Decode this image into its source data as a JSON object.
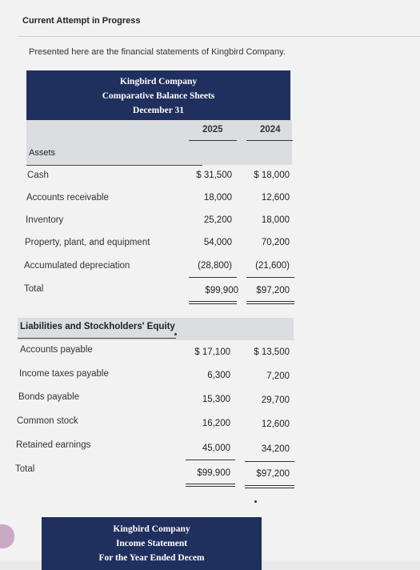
{
  "header": {
    "title": "Current Attempt in Progress"
  },
  "intro": "Presented here are the financial statements of Kingbird Company.",
  "balance_sheet": {
    "company": "Kingbird Company",
    "statement": "Comparative Balance Sheets",
    "date": "December 31",
    "years": [
      "2025",
      "2024"
    ],
    "assets_label": "Assets",
    "assets": [
      {
        "label": "Cash",
        "v2025": "$ 31,500",
        "v2024": "$ 18,000"
      },
      {
        "label": "Accounts receivable",
        "v2025": "18,000",
        "v2024": "12,600"
      },
      {
        "label": "Inventory",
        "v2025": "25,200",
        "v2024": "18,000"
      },
      {
        "label": "Property, plant, and equipment",
        "v2025": "54,000",
        "v2024": "70,200"
      },
      {
        "label": "Accumulated depreciation",
        "v2025": "(28,800)",
        "v2024": "(21,600)"
      },
      {
        "label": "Total",
        "v2025": "$99,900",
        "v2024": "$97,200"
      }
    ],
    "liab_label": "Liabilities and Stockholders' Equity",
    "liabilities": [
      {
        "label": "Accounts payable",
        "v2025": "$ 17,100",
        "v2024": "$ 13,500"
      },
      {
        "label": "Income taxes payable",
        "v2025": "6,300",
        "v2024": "7,200"
      },
      {
        "label": "Bonds payable",
        "v2025": "15,300",
        "v2024": "29,700"
      },
      {
        "label": "Common stock",
        "v2025": "16,200",
        "v2024": "12,600"
      },
      {
        "label": "Retained earnings",
        "v2025": "45,000",
        "v2024": "34,200"
      },
      {
        "label": "Total",
        "v2025": "$99,900",
        "v2024": "$97,200"
      }
    ]
  },
  "income_statement": {
    "company": "Kingbird Company",
    "statement": "Income Statement",
    "period": "For the Year Ended Decem"
  }
}
